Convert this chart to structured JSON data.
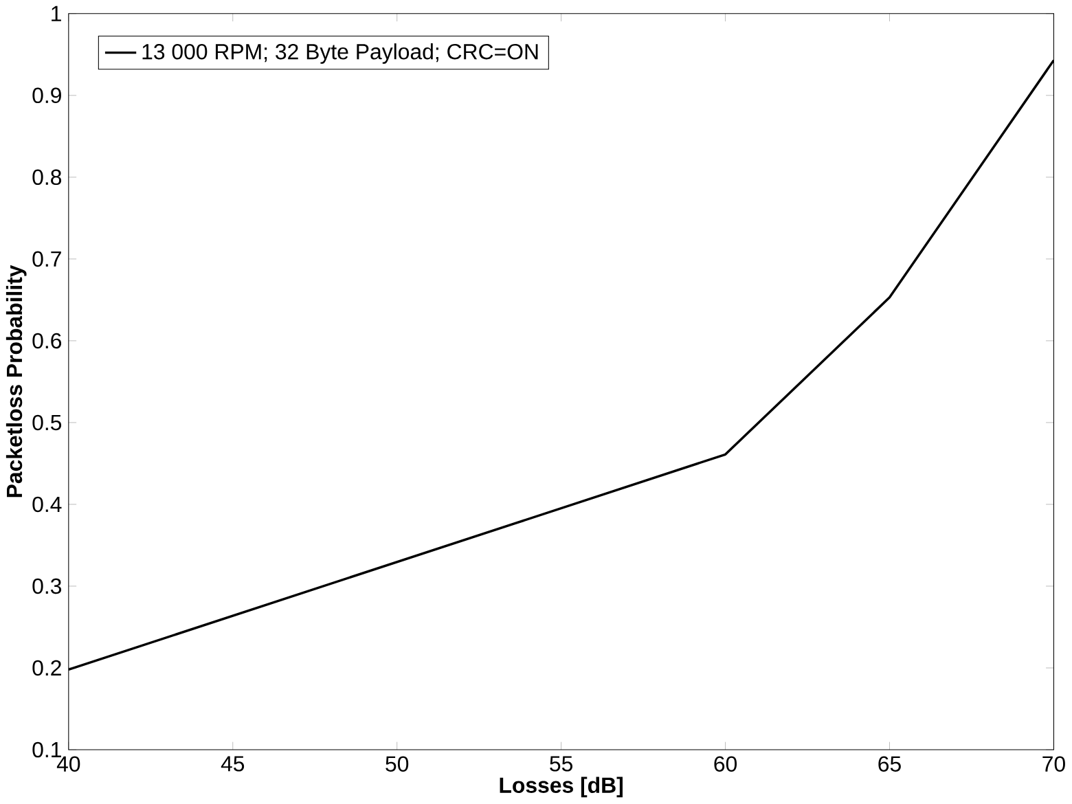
{
  "chart_data": {
    "type": "line",
    "xlabel": "Losses [dB]",
    "ylabel": "Packetloss Probability",
    "x": [
      40,
      60,
      65,
      70
    ],
    "series": [
      {
        "name": "13 000 RPM; 32 Byte Payload; CRC=ON",
        "color": "#000000",
        "values": [
          0.198,
          0.461,
          0.653,
          0.943
        ]
      }
    ],
    "xlim": [
      40,
      70
    ],
    "xticks": [
      40,
      45,
      50,
      55,
      60,
      65,
      70
    ],
    "ylim": [
      0.1,
      1
    ],
    "yticks": [
      0.1,
      0.2,
      0.3,
      0.4,
      0.5,
      0.6,
      0.7,
      0.8,
      0.9,
      1
    ],
    "grid": false,
    "legend": "top left",
    "marker": "none",
    "line_style": "solid"
  }
}
